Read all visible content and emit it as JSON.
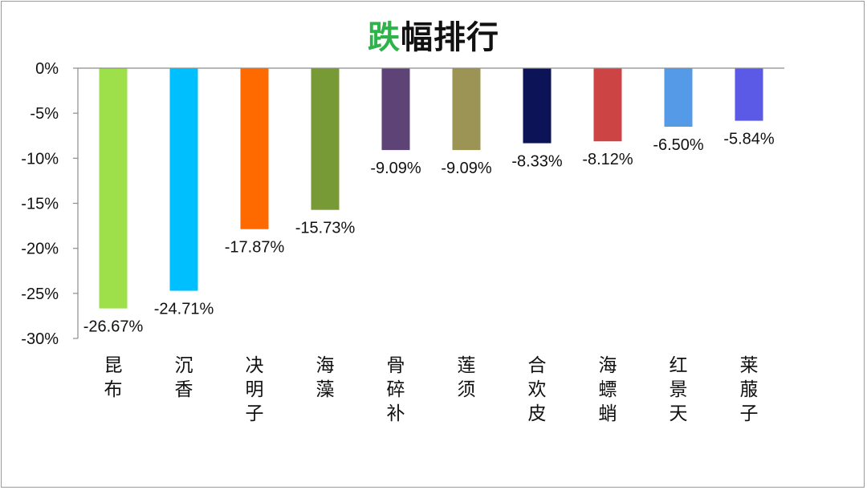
{
  "chart_data": {
    "type": "bar",
    "title_highlight": "跌",
    "title_rest": "幅排行",
    "title_highlight_color": "#2db34a",
    "categories": [
      "昆布",
      "沉香",
      "决明子",
      "海藻",
      "骨碎补",
      "莲须",
      "合欢皮",
      "海螵蛸",
      "红景天",
      "莱菔子"
    ],
    "values": [
      -26.67,
      -24.71,
      -17.87,
      -15.73,
      -9.09,
      -9.09,
      -8.33,
      -8.12,
      -6.5,
      -5.84
    ],
    "data_labels": [
      "-26.67%",
      "-24.71%",
      "-17.87%",
      "-15.73%",
      "-9.09%",
      "-9.09%",
      "-8.33%",
      "-8.12%",
      "-6.50%",
      "-5.84%"
    ],
    "colors": [
      "#9de04a",
      "#00bfff",
      "#ff6a00",
      "#779a36",
      "#5e4377",
      "#9c9455",
      "#0d1357",
      "#cc4444",
      "#559ae6",
      "#5a5ae6"
    ],
    "ylim": [
      -30,
      0
    ],
    "yticks": [
      0,
      -5,
      -10,
      -15,
      -20,
      -25,
      -30
    ],
    "ytick_labels": [
      "0%",
      "-5%",
      "-10%",
      "-15%",
      "-20%",
      "-25%",
      "-30%"
    ],
    "xlabel": "",
    "ylabel": "",
    "grid": false,
    "legend": "none"
  }
}
